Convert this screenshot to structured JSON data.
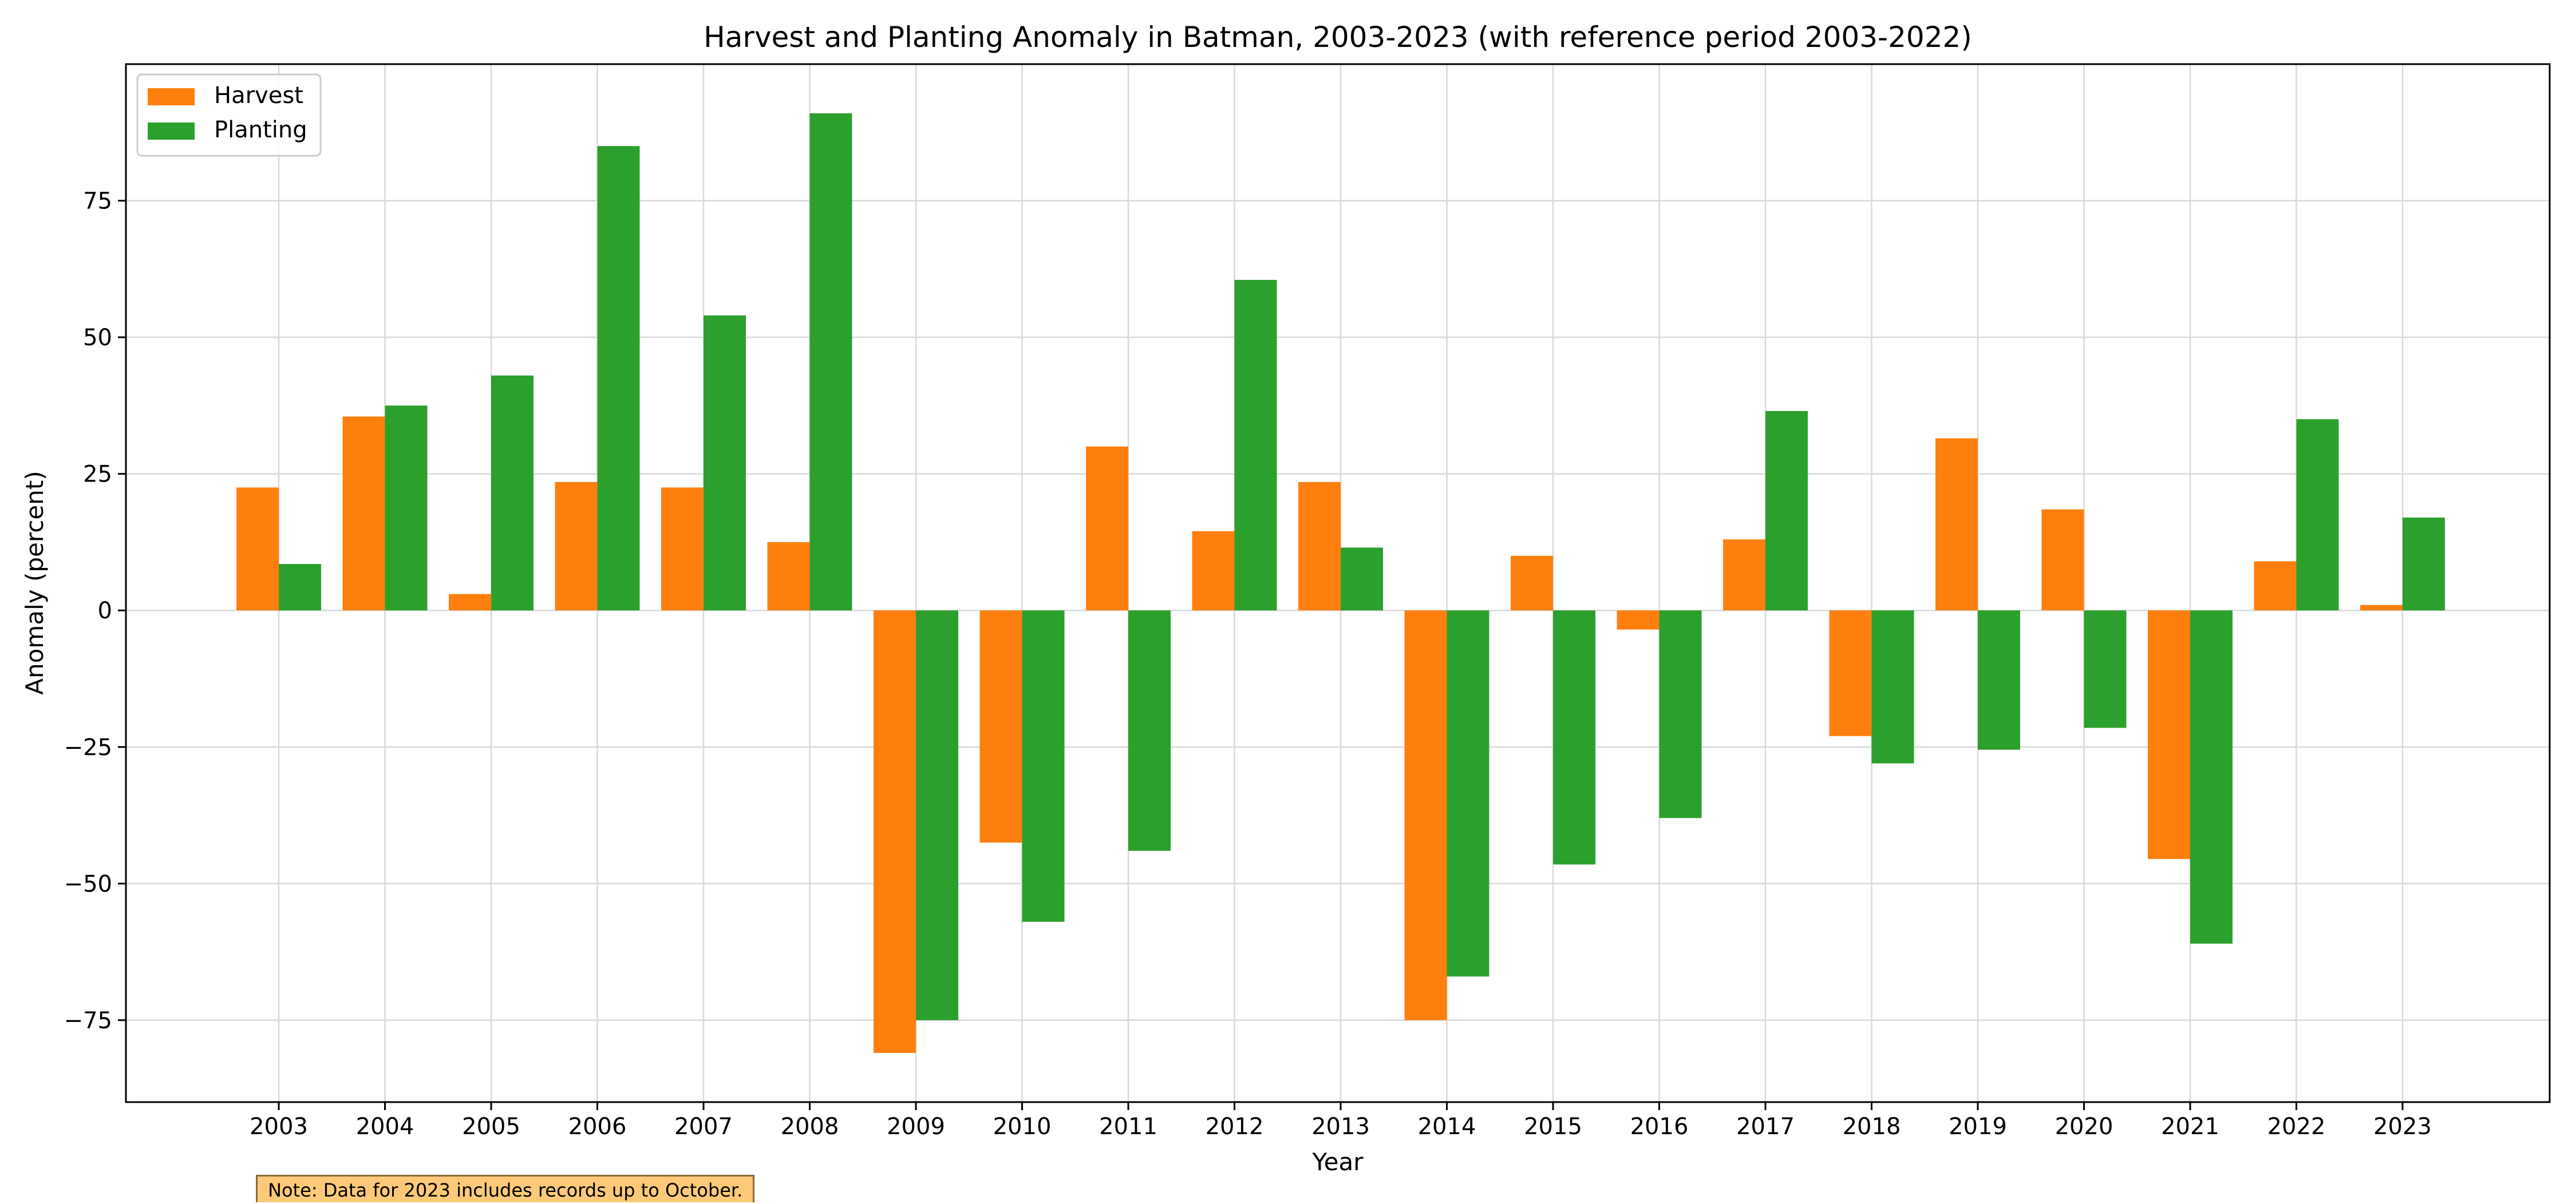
{
  "chart_data": {
    "type": "bar",
    "title": "Harvest and Planting Anomaly in Batman, 2003-2023 (with reference period 2003-2022)",
    "xlabel": "Year",
    "ylabel": "Anomaly (percent)",
    "categories": [
      "2003",
      "2004",
      "2005",
      "2006",
      "2007",
      "2008",
      "2009",
      "2010",
      "2011",
      "2012",
      "2013",
      "2014",
      "2015",
      "2016",
      "2017",
      "2018",
      "2019",
      "2020",
      "2021",
      "2022",
      "2023"
    ],
    "series": [
      {
        "name": "Harvest",
        "color": "#ff7f0e",
        "values": [
          22.5,
          35.5,
          3.0,
          23.5,
          22.5,
          12.5,
          -81.0,
          -42.5,
          30.0,
          14.5,
          23.5,
          -75.0,
          10.0,
          -3.5,
          13.0,
          -23.0,
          31.5,
          18.5,
          -45.5,
          9.0,
          1.0
        ]
      },
      {
        "name": "Planting",
        "color": "#2ca02c",
        "values": [
          8.5,
          37.5,
          43.0,
          85.0,
          54.0,
          91.0,
          -75.0,
          -57.0,
          -44.0,
          60.5,
          11.5,
          -67.0,
          -46.5,
          -38.0,
          36.5,
          -28.0,
          -25.5,
          -21.5,
          -61.0,
          35.0,
          17.0
        ]
      }
    ],
    "ylim": [
      -90,
      100
    ],
    "yticks": [
      -75,
      -50,
      -25,
      0,
      25,
      50,
      75
    ],
    "grid": true,
    "legend": "top-left",
    "note": "Note: Data for 2023 includes records up to October."
  }
}
